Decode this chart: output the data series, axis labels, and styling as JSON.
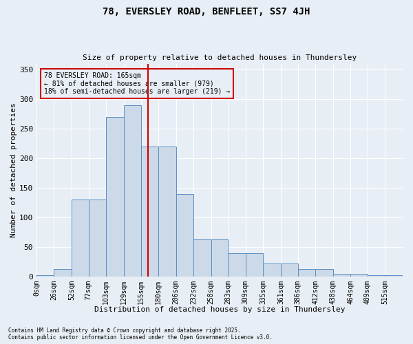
{
  "title1": "78, EVERSLEY ROAD, BENFLEET, SS7 4JH",
  "title2": "Size of property relative to detached houses in Thundersley",
  "xlabel": "Distribution of detached houses by size in Thundersley",
  "ylabel": "Number of detached properties",
  "bar_labels": [
    "0sqm",
    "26sqm",
    "52sqm",
    "77sqm",
    "103sqm",
    "129sqm",
    "155sqm",
    "180sqm",
    "206sqm",
    "232sqm",
    "258sqm",
    "283sqm",
    "309sqm",
    "335sqm",
    "361sqm",
    "386sqm",
    "412sqm",
    "438sqm",
    "464sqm",
    "489sqm",
    "515sqm"
  ],
  "bar_values": [
    2,
    13,
    130,
    130,
    270,
    290,
    220,
    220,
    140,
    63,
    63,
    40,
    40,
    22,
    22,
    13,
    13,
    5,
    5,
    2,
    2
  ],
  "bar_color": "#ccd9e8",
  "bar_edge_color": "#5b8fc4",
  "background_color": "#e8eef5",
  "vline_x": 7,
  "vline_color": "#cc0000",
  "annotation_title": "78 EVERSLEY ROAD: 165sqm",
  "annotation_line1": "← 81% of detached houses are smaller (979)",
  "annotation_line2": "18% of semi-detached houses are larger (219) →",
  "annotation_box_color": "#cc0000",
  "ylim": [
    0,
    360
  ],
  "yticks": [
    0,
    50,
    100,
    150,
    200,
    250,
    300,
    350
  ],
  "footnote1": "Contains HM Land Registry data © Crown copyright and database right 2025.",
  "footnote2": "Contains public sector information licensed under the Open Government Licence v3.0.",
  "bin_edges": [
    0,
    26,
    52,
    77,
    103,
    129,
    155,
    180,
    206,
    232,
    258,
    283,
    309,
    335,
    361,
    386,
    412,
    438,
    464,
    489,
    515,
    541
  ]
}
